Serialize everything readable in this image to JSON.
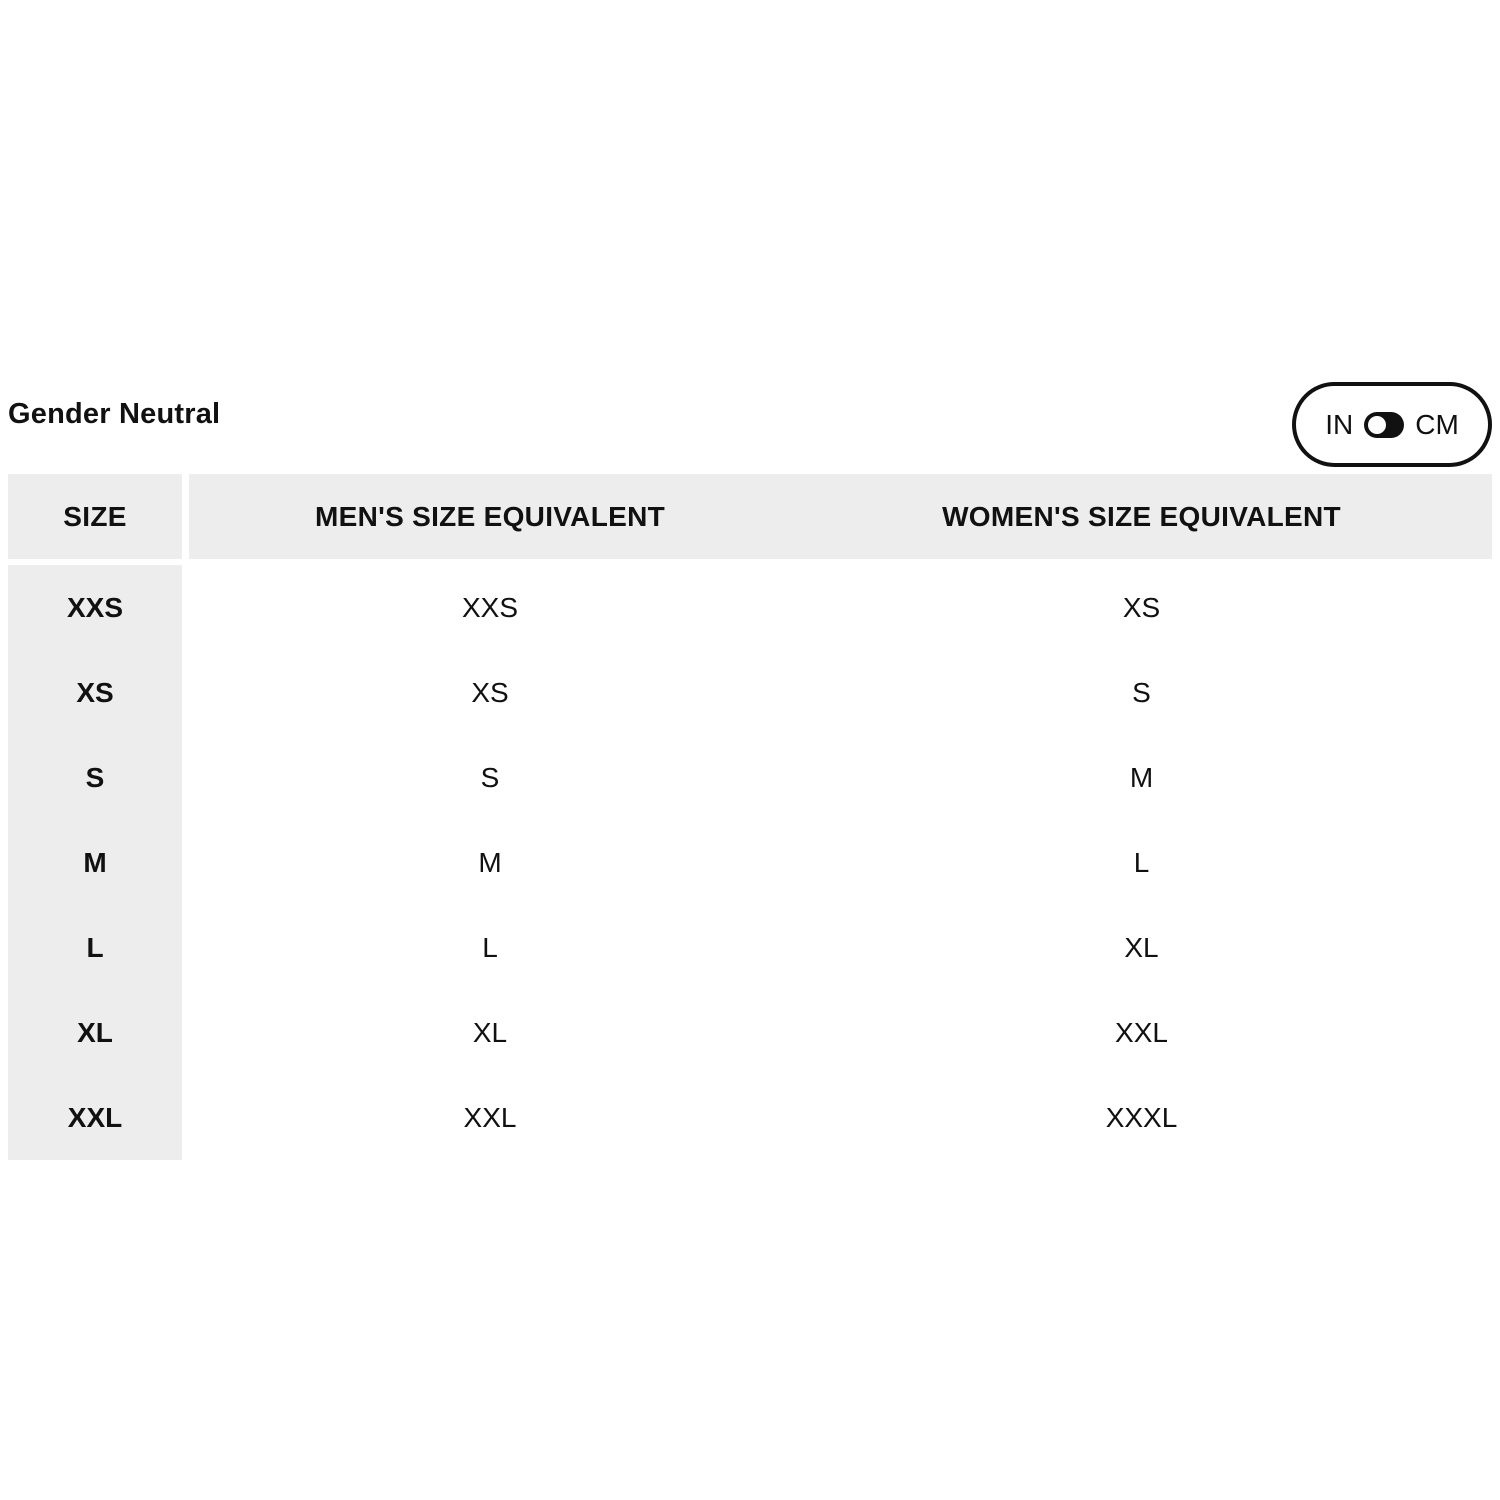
{
  "title": "Gender Neutral",
  "unit_toggle": {
    "left_label": "IN",
    "right_label": "CM",
    "selected": "IN"
  },
  "table": {
    "columns": [
      "SIZE",
      "MEN'S SIZE EQUIVALENT",
      "WOMEN'S SIZE EQUIVALENT"
    ],
    "rows": [
      {
        "size": "XXS",
        "mens": "XXS",
        "womens": "XS"
      },
      {
        "size": "XS",
        "mens": "XS",
        "womens": "S"
      },
      {
        "size": "S",
        "mens": "S",
        "womens": "M"
      },
      {
        "size": "M",
        "mens": "M",
        "womens": "L"
      },
      {
        "size": "L",
        "mens": "L",
        "womens": "XL"
      },
      {
        "size": "XL",
        "mens": "XL",
        "womens": "XXL"
      },
      {
        "size": "XXL",
        "mens": "XXL",
        "womens": "XXXL"
      }
    ]
  },
  "colors": {
    "cell_background": "#EDEDED",
    "text": "#111111",
    "toggle_border": "#111111",
    "toggle_track": "#111111",
    "toggle_knob": "#FFFFFF",
    "page_background": "#FFFFFF"
  }
}
